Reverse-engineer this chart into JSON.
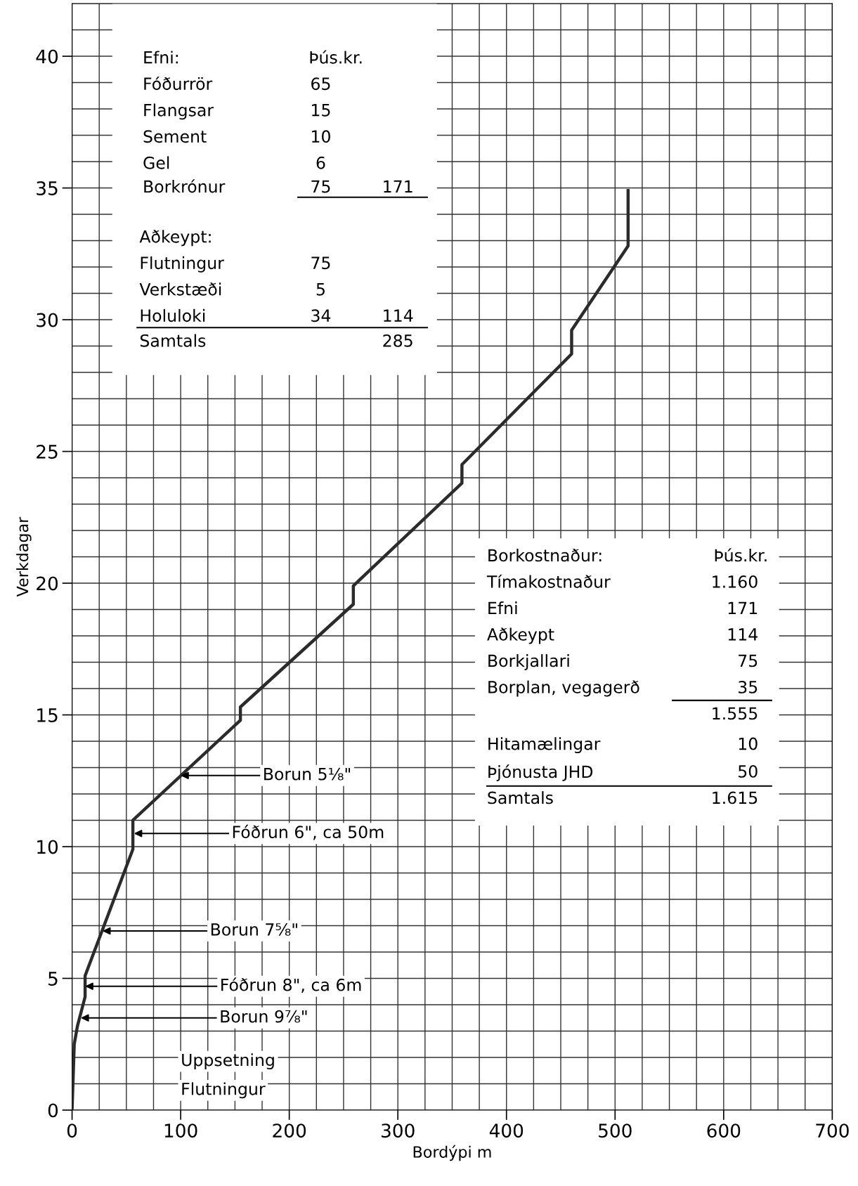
{
  "chart_data": {
    "type": "line",
    "xlabel": "Bordýpi m",
    "ylabel": "Verkdagar",
    "xlim": [
      0,
      700
    ],
    "xticks": [
      0,
      100,
      200,
      300,
      400,
      500,
      600,
      700
    ],
    "ylim": [
      0,
      42
    ],
    "yticks": [
      0,
      5,
      10,
      15,
      20,
      25,
      30,
      35,
      40
    ],
    "grid": true,
    "legend": false,
    "marker": "none",
    "line_style": "solid",
    "series": [
      {
        "color": "#2b2b2b",
        "x": [
          0,
          2,
          5,
          12,
          12,
          56,
          56,
          155,
          155,
          259,
          259,
          359,
          359,
          460,
          460,
          512,
          512
        ],
        "values": [
          0,
          2.5,
          3.2,
          4.3,
          5.1,
          9.9,
          11.0,
          14.8,
          15.3,
          19.2,
          19.9,
          23.8,
          24.5,
          28.7,
          29.6,
          32.8,
          34.9
        ]
      }
    ],
    "annotations": [
      "Efni:",
      "Þús.kr.",
      "Fóðurrör",
      "65",
      "Flangsar",
      "15",
      "Sement",
      "10",
      "Gel",
      "6",
      "Borkrónur",
      "75",
      "171",
      "Aðkeypt:",
      "Flutningur",
      "75",
      "Verkstæði",
      "5",
      "Holuloki",
      "34",
      "114",
      "Samtals",
      "285",
      "Borkostnaður:",
      "Þús.kr.",
      "Tímakostnaður",
      "1.160",
      "Efni",
      "171",
      "Aðkeypt",
      "114",
      "Borkjallari",
      "75",
      "Borplan, vegagerð",
      "35",
      "1.555",
      "Hitamælingar",
      "10",
      "Þjónusta JHD",
      "50",
      "Samtals",
      "1.615",
      {
        "text": "Borun 5⅛\"",
        "x": 100,
        "y": 12.7
      },
      {
        "text": "Fóðrun 6\", ca 50m",
        "x": 57,
        "y": 10.5
      },
      {
        "text": "Borun 7⅝\"",
        "x": 28,
        "y": 6.8
      },
      {
        "text": "Fóðrun 8\", ca 6m",
        "x": 12,
        "y": 4.7
      },
      {
        "text": "Borun 9⅞\"",
        "x": 8,
        "y": 3.5
      },
      "Uppsetning",
      "Flutningur"
    ]
  }
}
